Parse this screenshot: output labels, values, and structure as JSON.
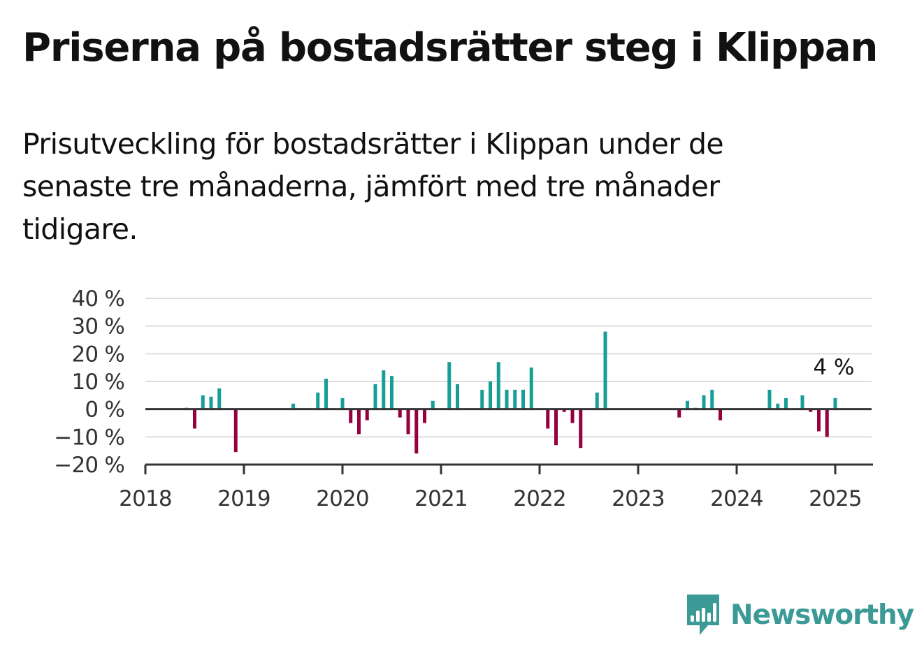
{
  "header": {
    "title": "Priserna på bostadsrätter steg i Klippan",
    "subtitle": "Prisutveckling för bostadsrätter i Klippan under de senaste tre månaderna, jämfört med tre månader tidigare."
  },
  "brand": {
    "name": "Newsworthy",
    "icon": "newsworthy-logo-icon",
    "color": "#3c9a96"
  },
  "chart_data": {
    "type": "bar",
    "title": "",
    "xlabel": "",
    "ylabel": "",
    "ylim": [
      -20,
      40
    ],
    "xlim": [
      "2018-01",
      "2025-05"
    ],
    "yticks": [
      -20,
      -10,
      0,
      10,
      20,
      30,
      40
    ],
    "ytick_labels": [
      "−20 %",
      "−10 %",
      "0 %",
      "10 %",
      "20 %",
      "30 %",
      "40 %"
    ],
    "xtick_labels": [
      "2018",
      "2019",
      "2020",
      "2021",
      "2022",
      "2023",
      "2024",
      "2025"
    ],
    "grid": true,
    "legend": "none",
    "colors": {
      "positive": "#179e96",
      "negative": "#97003f",
      "grid": "#dedede",
      "axis": "#333333"
    },
    "annotation": {
      "date": "2025-01",
      "text": "4 %"
    },
    "series": [
      {
        "dates": [
          "2018-06",
          "2018-07",
          "2018-08",
          "2018-09",
          "2018-10",
          "2018-12",
          "2019-07",
          "2019-10",
          "2019-11",
          "2020-01",
          "2020-02",
          "2020-03",
          "2020-04",
          "2020-05",
          "2020-06",
          "2020-07",
          "2020-08",
          "2020-09",
          "2020-10",
          "2020-11",
          "2020-12",
          "2021-02",
          "2021-03",
          "2021-06",
          "2021-07",
          "2021-08",
          "2021-09",
          "2021-10",
          "2021-11",
          "2021-12",
          "2022-02",
          "2022-03",
          "2022-04",
          "2022-05",
          "2022-06",
          "2022-08",
          "2022-09",
          "2023-06",
          "2023-07",
          "2023-08",
          "2023-09",
          "2023-10",
          "2023-11",
          "2024-05",
          "2024-06",
          "2024-07",
          "2024-09",
          "2024-10",
          "2024-11",
          "2024-12",
          "2025-01"
        ],
        "values": [
          0.5,
          -7,
          5,
          4.5,
          7.5,
          -15.5,
          2,
          6,
          11,
          4,
          -5,
          -9,
          -4,
          9,
          14,
          12,
          -3,
          -9,
          -16,
          -5,
          3,
          17,
          9,
          7,
          10,
          17,
          7,
          7,
          7,
          15,
          -7,
          -13,
          -1,
          -5,
          -14,
          6,
          28,
          -3,
          3,
          0.5,
          5,
          7,
          -4,
          7,
          2,
          4,
          5,
          -1,
          -8,
          -10,
          4
        ]
      }
    ]
  }
}
